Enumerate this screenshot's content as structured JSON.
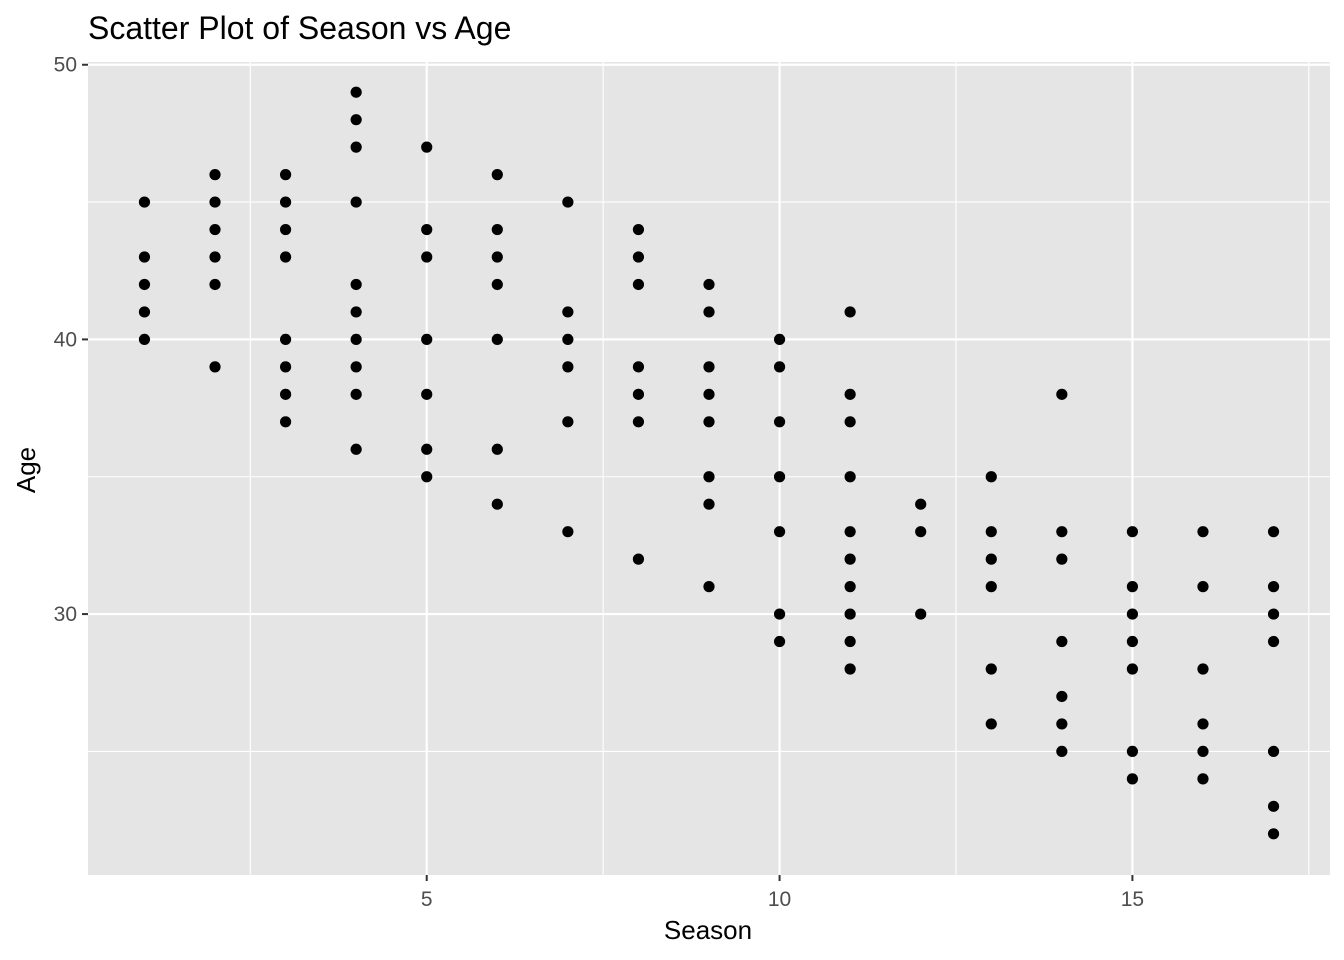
{
  "chart_data": {
    "type": "scatter",
    "title": "Scatter Plot of Season vs Age",
    "xlabel": "Season",
    "ylabel": "Age",
    "xlim": [
      0.2,
      17.8
    ],
    "ylim": [
      20.5,
      50.1
    ],
    "x_ticks": [
      5,
      10,
      15
    ],
    "y_ticks": [
      30,
      40,
      50
    ],
    "x_minor_ticks": [
      2.5,
      7.5,
      12.5,
      17.5
    ],
    "y_minor_ticks": [
      25,
      35,
      45
    ],
    "grid": true,
    "legend": "none",
    "colors": {
      "panel": "#e5e5e5",
      "grid": "#ffffff",
      "point": "#000000"
    },
    "points": [
      [
        1,
        45
      ],
      [
        1,
        43
      ],
      [
        1,
        42
      ],
      [
        1,
        41
      ],
      [
        1,
        40
      ],
      [
        2,
        46
      ],
      [
        2,
        45
      ],
      [
        2,
        44
      ],
      [
        2,
        43
      ],
      [
        2,
        42
      ],
      [
        2,
        39
      ],
      [
        3,
        46
      ],
      [
        3,
        45
      ],
      [
        3,
        44
      ],
      [
        3,
        43
      ],
      [
        3,
        40
      ],
      [
        3,
        39
      ],
      [
        3,
        38
      ],
      [
        3,
        37
      ],
      [
        4,
        49
      ],
      [
        4,
        48
      ],
      [
        4,
        47
      ],
      [
        4,
        45
      ],
      [
        4,
        42
      ],
      [
        4,
        41
      ],
      [
        4,
        40
      ],
      [
        4,
        39
      ],
      [
        4,
        38
      ],
      [
        4,
        36
      ],
      [
        5,
        47
      ],
      [
        5,
        44
      ],
      [
        5,
        43
      ],
      [
        5,
        40
      ],
      [
        5,
        38
      ],
      [
        5,
        36
      ],
      [
        5,
        35
      ],
      [
        6,
        46
      ],
      [
        6,
        44
      ],
      [
        6,
        43
      ],
      [
        6,
        42
      ],
      [
        6,
        40
      ],
      [
        6,
        36
      ],
      [
        6,
        34
      ],
      [
        7,
        45
      ],
      [
        7,
        41
      ],
      [
        7,
        40
      ],
      [
        7,
        39
      ],
      [
        7,
        37
      ],
      [
        7,
        33
      ],
      [
        8,
        44
      ],
      [
        8,
        43
      ],
      [
        8,
        42
      ],
      [
        8,
        39
      ],
      [
        8,
        38
      ],
      [
        8,
        37
      ],
      [
        8,
        32
      ],
      [
        9,
        42
      ],
      [
        9,
        41
      ],
      [
        9,
        39
      ],
      [
        9,
        38
      ],
      [
        9,
        37
      ],
      [
        9,
        35
      ],
      [
        9,
        34
      ],
      [
        9,
        31
      ],
      [
        10,
        40
      ],
      [
        10,
        39
      ],
      [
        10,
        37
      ],
      [
        10,
        35
      ],
      [
        10,
        33
      ],
      [
        10,
        30
      ],
      [
        10,
        29
      ],
      [
        11,
        41
      ],
      [
        11,
        38
      ],
      [
        11,
        37
      ],
      [
        11,
        35
      ],
      [
        11,
        33
      ],
      [
        11,
        32
      ],
      [
        11,
        31
      ],
      [
        11,
        30
      ],
      [
        11,
        29
      ],
      [
        11,
        28
      ],
      [
        12,
        34
      ],
      [
        12,
        33
      ],
      [
        12,
        30
      ],
      [
        13,
        35
      ],
      [
        13,
        33
      ],
      [
        13,
        32
      ],
      [
        13,
        31
      ],
      [
        13,
        28
      ],
      [
        13,
        26
      ],
      [
        14,
        38
      ],
      [
        14,
        33
      ],
      [
        14,
        32
      ],
      [
        14,
        29
      ],
      [
        14,
        27
      ],
      [
        14,
        26
      ],
      [
        14,
        25
      ],
      [
        15,
        33
      ],
      [
        15,
        31
      ],
      [
        15,
        30
      ],
      [
        15,
        29
      ],
      [
        15,
        28
      ],
      [
        15,
        25
      ],
      [
        15,
        24
      ],
      [
        16,
        33
      ],
      [
        16,
        31
      ],
      [
        16,
        28
      ],
      [
        16,
        26
      ],
      [
        16,
        25
      ],
      [
        16,
        24
      ],
      [
        17,
        33
      ],
      [
        17,
        31
      ],
      [
        17,
        30
      ],
      [
        17,
        29
      ],
      [
        17,
        25
      ],
      [
        17,
        23
      ],
      [
        17,
        22
      ]
    ]
  }
}
